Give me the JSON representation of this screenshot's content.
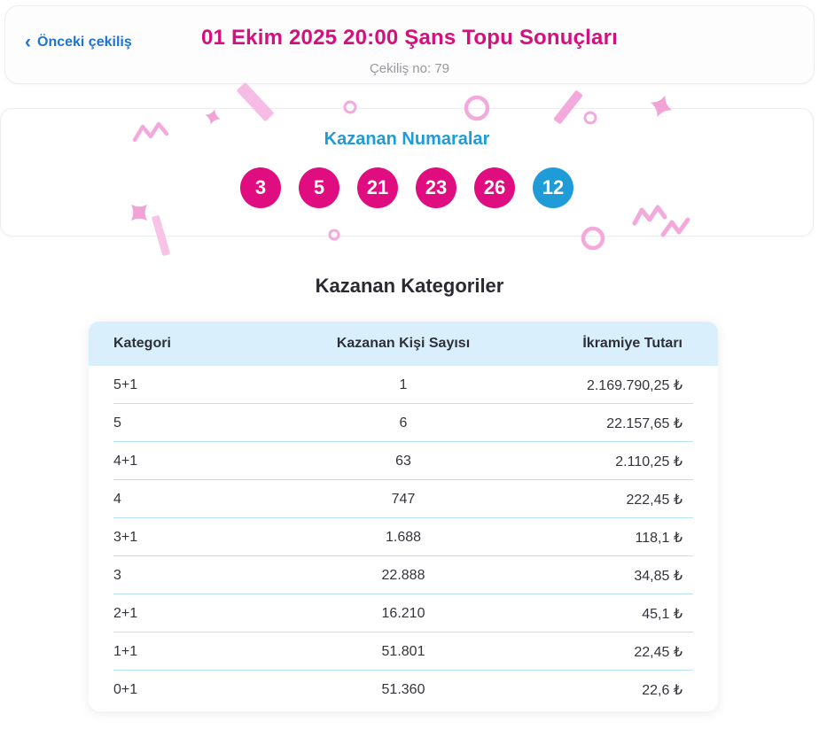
{
  "header": {
    "back_chevron": "‹",
    "back_link": "Önceki çekiliş",
    "title": "01 Ekim 2025 20:00 Şans Topu Sonuçları",
    "draw_no": "Çekiliş no: 79"
  },
  "winning_numbers": {
    "heading": "Kazanan Numaralar",
    "numbers": [
      "3",
      "5",
      "21",
      "23",
      "26"
    ],
    "bonus_number": "12"
  },
  "categories": {
    "heading": "Kazanan Kategoriler",
    "columns": [
      "Kategori",
      "Kazanan Kişi Sayısı",
      "İkramiye Tutarı"
    ],
    "rows": [
      {
        "category": "5+1",
        "winners": "1",
        "prize": "2.169.790,25 ₺"
      },
      {
        "category": "5",
        "winners": "6",
        "prize": "22.157,65 ₺"
      },
      {
        "category": "4+1",
        "winners": "63",
        "prize": "2.110,25 ₺"
      },
      {
        "category": "4",
        "winners": "747",
        "prize": "222,45 ₺"
      },
      {
        "category": "3+1",
        "winners": "1.688",
        "prize": "118,1 ₺"
      },
      {
        "category": "3",
        "winners": "22.888",
        "prize": "34,85 ₺"
      },
      {
        "category": "2+1",
        "winners": "16.210",
        "prize": "45,1 ₺"
      },
      {
        "category": "1+1",
        "winners": "51.801",
        "prize": "22,45 ₺"
      },
      {
        "category": "0+1",
        "winners": "51.360",
        "prize": "22,6 ₺"
      }
    ]
  },
  "colors": {
    "title": "#d60f7e",
    "link_blue": "#1a74d4",
    "numbers_heading_blue": "#1e9cd9",
    "ball_magenta": "#e00d80",
    "ball_bonus_blue": "#1f9cd8",
    "table_header_bg": "#d9f0fc",
    "row_separator": "#b9e2f4",
    "confetti_pink": "#f4a9dc",
    "confetti_pink_light": "#f6bce5"
  }
}
